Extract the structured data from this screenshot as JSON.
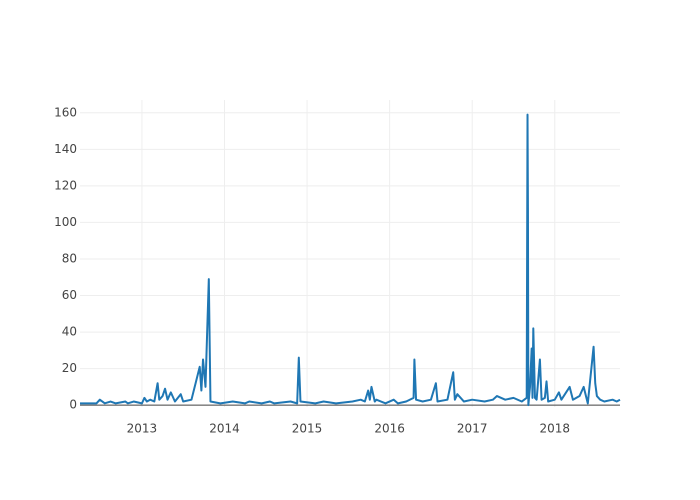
{
  "chart_data": {
    "type": "line",
    "x": [
      2012.25,
      2012.45,
      2012.49,
      2012.55,
      2012.62,
      2012.68,
      2012.8,
      2012.83,
      2012.9,
      2013.0,
      2013.03,
      2013.06,
      2013.1,
      2013.15,
      2013.19,
      2013.21,
      2013.25,
      2013.28,
      2013.31,
      2013.35,
      2013.4,
      2013.47,
      2013.5,
      2013.6,
      2013.7,
      2013.72,
      2013.74,
      2013.77,
      2013.79,
      2013.81,
      2013.83,
      2013.95,
      2014.1,
      2014.25,
      2014.3,
      2014.45,
      2014.55,
      2014.6,
      2014.8,
      2014.88,
      2014.9,
      2014.92,
      2015.1,
      2015.2,
      2015.35,
      2015.55,
      2015.65,
      2015.7,
      2015.74,
      2015.76,
      2015.78,
      2015.82,
      2015.84,
      2015.95,
      2016.05,
      2016.1,
      2016.2,
      2016.29,
      2016.3,
      2016.32,
      2016.4,
      2016.5,
      2016.56,
      2016.58,
      2016.7,
      2016.77,
      2016.79,
      2016.82,
      2016.9,
      2017.0,
      2017.15,
      2017.25,
      2017.3,
      2017.4,
      2017.5,
      2017.6,
      2017.66,
      2017.67,
      2017.675,
      2017.68,
      2017.7,
      2017.72,
      2017.73,
      2017.74,
      2017.76,
      2017.78,
      2017.82,
      2017.84,
      2017.88,
      2017.9,
      2017.92,
      2018.0,
      2018.05,
      2018.08,
      2018.18,
      2018.22,
      2018.3,
      2018.35,
      2018.4,
      2018.47,
      2018.49,
      2018.51,
      2018.55,
      2018.6,
      2018.7,
      2018.75,
      2018.79
    ],
    "values": [
      1,
      1,
      3,
      1,
      2,
      1,
      2,
      1,
      2,
      1,
      4,
      2,
      3,
      2,
      12,
      3,
      5,
      9,
      3,
      7,
      2,
      6,
      2,
      3,
      21,
      8,
      25,
      10,
      40,
      69,
      2,
      1,
      2,
      1,
      2,
      1,
      2,
      1,
      2,
      1,
      26,
      2,
      1,
      2,
      1,
      2,
      3,
      2,
      8,
      3,
      10,
      2,
      3,
      1,
      3,
      1,
      2,
      4,
      25,
      3,
      2,
      3,
      12,
      2,
      3,
      18,
      3,
      6,
      2,
      3,
      2,
      3,
      5,
      3,
      4,
      2,
      4,
      159,
      107,
      0,
      10,
      31,
      4,
      42,
      4,
      3,
      25,
      3,
      4,
      13,
      2,
      3,
      7,
      3,
      10,
      3,
      5,
      10,
      1,
      32,
      12,
      5,
      3,
      2,
      3,
      2,
      3
    ],
    "color": "#1f77b4",
    "xlim": [
      2012.25,
      2018.79
    ],
    "xticks": [
      2013,
      2014,
      2015,
      2016,
      2017,
      2018
    ],
    "ylim": [
      -1,
      167
    ],
    "yticks": [
      0,
      20,
      40,
      60,
      80,
      100,
      120,
      140,
      160
    ],
    "grid": true
  }
}
